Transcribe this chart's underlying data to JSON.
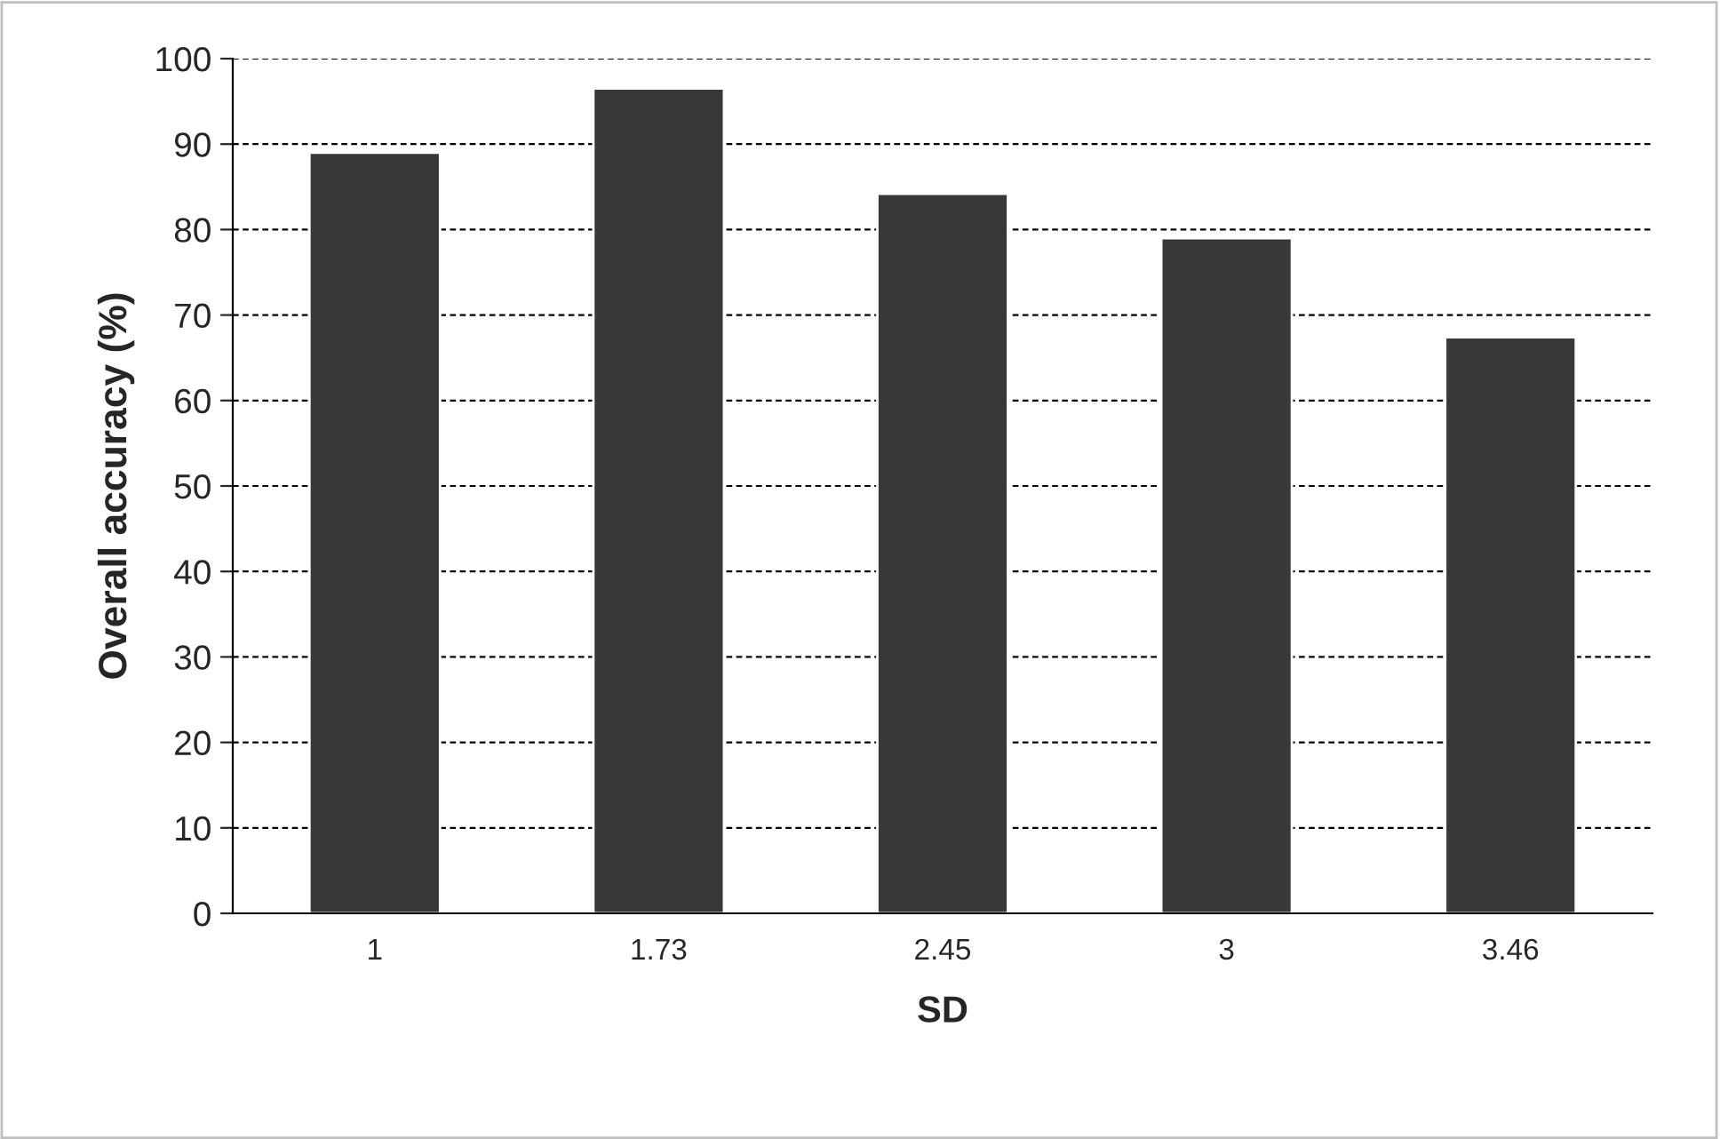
{
  "chart_data": {
    "type": "bar",
    "xlabel": "SD",
    "ylabel": "Overall accuracy (%)",
    "categories": [
      "1",
      "1.73",
      "2.45",
      "3",
      "3.46"
    ],
    "values": [
      89.0,
      96.5,
      84.2,
      79.0,
      67.4
    ],
    "color": "#3a3836",
    "ylim": [
      0,
      100
    ],
    "yticks": [
      0,
      10,
      20,
      30,
      40,
      50,
      60,
      70,
      80,
      90,
      100
    ],
    "grid": "y"
  }
}
